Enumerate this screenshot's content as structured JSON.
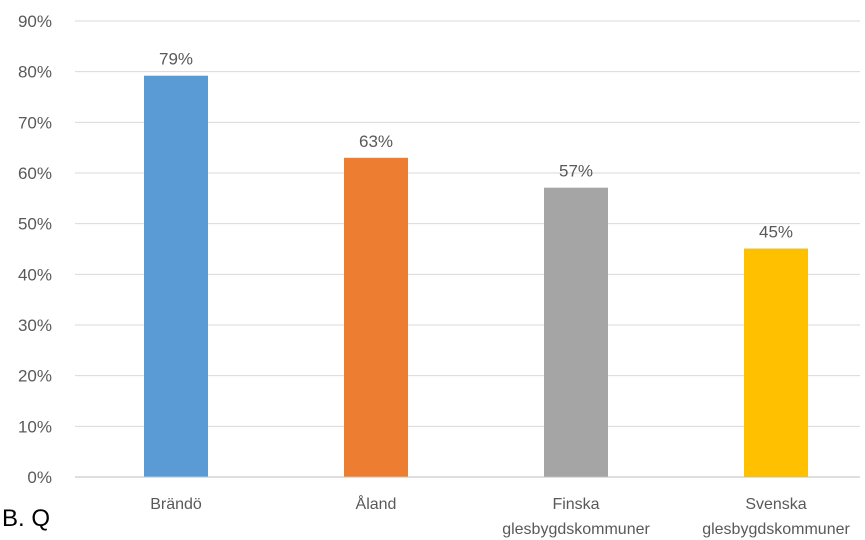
{
  "chart_data": {
    "type": "bar",
    "categories": [
      "Brändö",
      "Åland",
      "Finska glesbygdskommuner",
      "Svenska glesbygdskommuner"
    ],
    "category_lines": [
      [
        "Brändö"
      ],
      [
        "Åland"
      ],
      [
        "Finska",
        "glesbygdskommuner"
      ],
      [
        "Svenska",
        "glesbygdskommuner"
      ]
    ],
    "values": [
      79.2,
      63,
      57.1,
      45.1
    ],
    "data_labels": [
      "79%",
      "63%",
      "57%",
      "45%"
    ],
    "colors": [
      "#5b9bd5",
      "#ed7d31",
      "#a5a5a5",
      "#ffc000"
    ],
    "title": "",
    "xlabel": "",
    "ylabel": "",
    "ylim": [
      0,
      90
    ],
    "yticks": [
      0,
      10,
      20,
      30,
      40,
      50,
      60,
      70,
      80,
      90
    ],
    "ytick_labels": [
      "0%",
      "10%",
      "20%",
      "30%",
      "40%",
      "50%",
      "60%",
      "70%",
      "80%",
      "90%"
    ],
    "grid": true,
    "legend": "none"
  },
  "stray_text": "B. Q"
}
